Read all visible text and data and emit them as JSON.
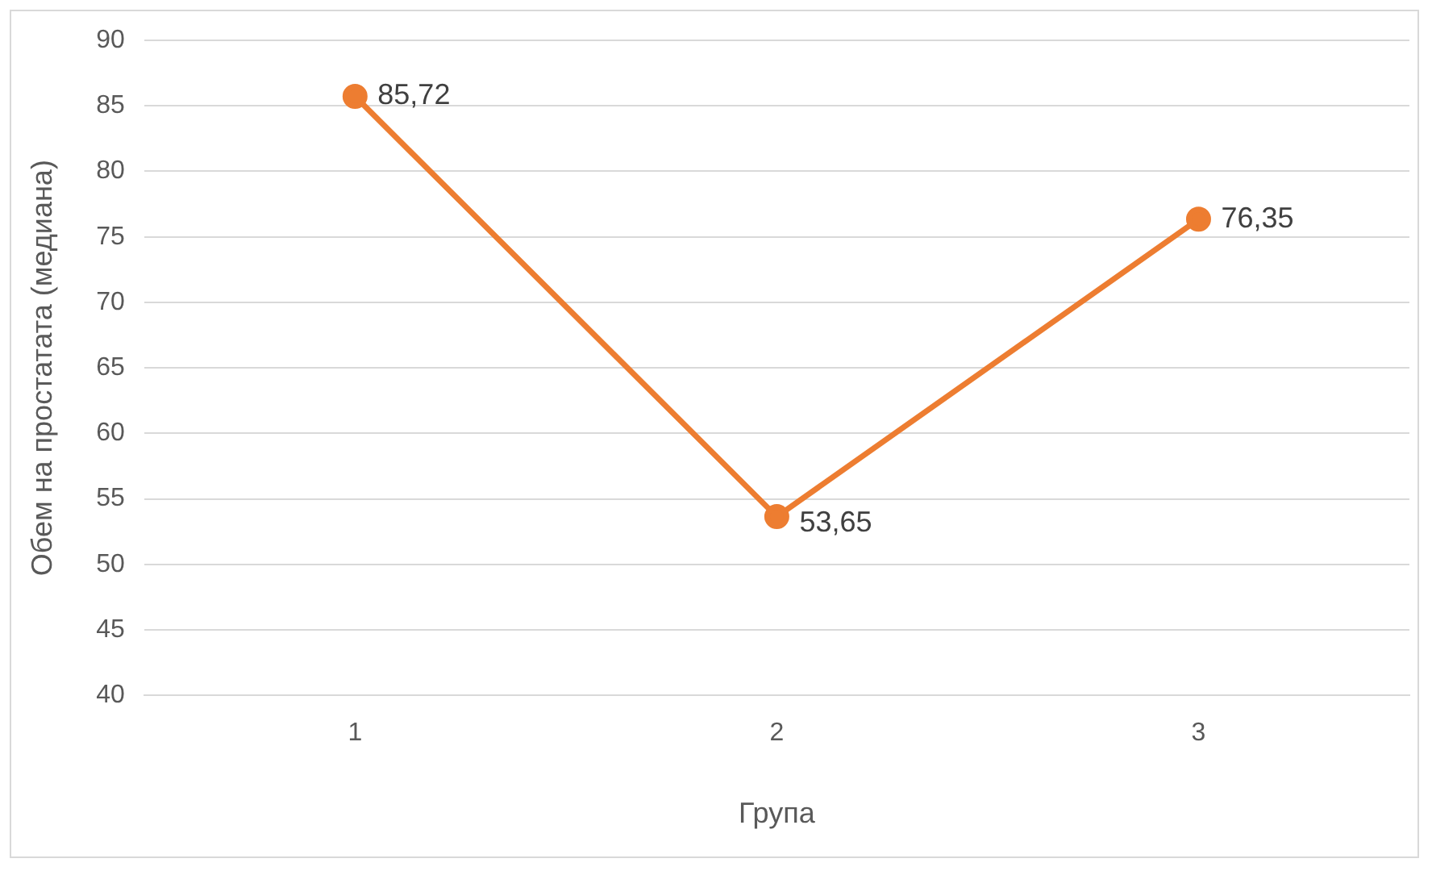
{
  "chart_data": {
    "type": "line",
    "xlabel": "Група",
    "ylabel": "Обем на простатата (медиана)",
    "categories": [
      "1",
      "2",
      "3"
    ],
    "series": [
      {
        "color": "#ed7d31",
        "values": [
          85.72,
          53.65,
          76.35
        ],
        "value_labels": [
          "85,72",
          "53,65",
          "76,35"
        ]
      }
    ],
    "ylim": [
      40,
      90
    ],
    "yticks": [
      40,
      45,
      50,
      55,
      60,
      65,
      70,
      75,
      80,
      85,
      90
    ],
    "grid": "y",
    "legend": false,
    "marker": "circle",
    "line_style": "solid"
  }
}
